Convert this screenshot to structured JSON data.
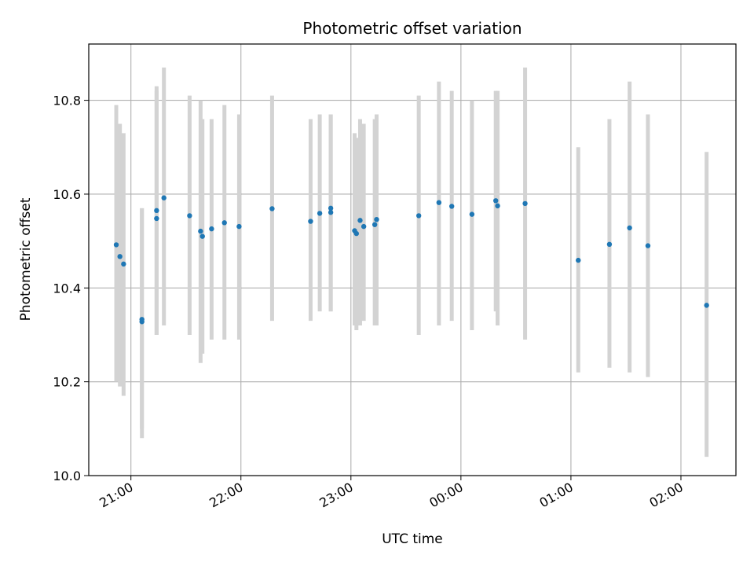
{
  "chart_data": {
    "type": "scatter",
    "title": "Photometric offset variation",
    "xlabel": "UTC time",
    "ylabel": "Photometric offset",
    "grid": true,
    "legend": "none",
    "x_unit": "hours (UTC, continuing past midnight)",
    "xlim": [
      "20:37",
      "02:30"
    ],
    "ylim": [
      10.0,
      10.92
    ],
    "x_ticks": [
      "21:00",
      "22:00",
      "23:00",
      "00:00",
      "01:00",
      "02:00"
    ],
    "y_ticks": [
      "10.0",
      "10.2",
      "10.4",
      "10.6",
      "10.8"
    ],
    "colors": {
      "point": "#1f77b4",
      "errorbar": "#d3d3d3",
      "grid": "#b0b0b0"
    },
    "points": [
      {
        "x": "20:52",
        "y": 10.492,
        "lo": 10.2,
        "hi": 10.79
      },
      {
        "x": "20:54",
        "y": 10.467,
        "lo": 10.19,
        "hi": 10.75
      },
      {
        "x": "20:56",
        "y": 10.451,
        "lo": 10.17,
        "hi": 10.73
      },
      {
        "x": "21:06",
        "y": 10.333,
        "lo": 10.1,
        "hi": 10.57
      },
      {
        "x": "21:06",
        "y": 10.328,
        "lo": 10.08,
        "hi": 10.57
      },
      {
        "x": "21:14",
        "y": 10.548,
        "lo": 10.3,
        "hi": 10.82
      },
      {
        "x": "21:14",
        "y": 10.565,
        "lo": 10.3,
        "hi": 10.83
      },
      {
        "x": "21:18",
        "y": 10.592,
        "lo": 10.32,
        "hi": 10.87
      },
      {
        "x": "21:32",
        "y": 10.554,
        "lo": 10.3,
        "hi": 10.81
      },
      {
        "x": "21:38",
        "y": 10.521,
        "lo": 10.24,
        "hi": 10.8
      },
      {
        "x": "21:39",
        "y": 10.51,
        "lo": 10.26,
        "hi": 10.76
      },
      {
        "x": "21:44",
        "y": 10.526,
        "lo": 10.29,
        "hi": 10.76
      },
      {
        "x": "21:51",
        "y": 10.539,
        "lo": 10.29,
        "hi": 10.79
      },
      {
        "x": "21:59",
        "y": 10.531,
        "lo": 10.29,
        "hi": 10.77
      },
      {
        "x": "22:17",
        "y": 10.569,
        "lo": 10.33,
        "hi": 10.81
      },
      {
        "x": "22:38",
        "y": 10.542,
        "lo": 10.33,
        "hi": 10.76
      },
      {
        "x": "22:43",
        "y": 10.559,
        "lo": 10.35,
        "hi": 10.77
      },
      {
        "x": "22:49",
        "y": 10.57,
        "lo": 10.35,
        "hi": 10.77
      },
      {
        "x": "22:49",
        "y": 10.561,
        "lo": 10.35,
        "hi": 10.77
      },
      {
        "x": "23:02",
        "y": 10.522,
        "lo": 10.32,
        "hi": 10.73
      },
      {
        "x": "23:03",
        "y": 10.516,
        "lo": 10.31,
        "hi": 10.72
      },
      {
        "x": "23:05",
        "y": 10.544,
        "lo": 10.32,
        "hi": 10.76
      },
      {
        "x": "23:07",
        "y": 10.531,
        "lo": 10.33,
        "hi": 10.75
      },
      {
        "x": "23:13",
        "y": 10.535,
        "lo": 10.32,
        "hi": 10.76
      },
      {
        "x": "23:14",
        "y": 10.546,
        "lo": 10.32,
        "hi": 10.77
      },
      {
        "x": "23:37",
        "y": 10.554,
        "lo": 10.3,
        "hi": 10.81
      },
      {
        "x": "23:48",
        "y": 10.582,
        "lo": 10.32,
        "hi": 10.84
      },
      {
        "x": "23:55",
        "y": 10.574,
        "lo": 10.33,
        "hi": 10.82
      },
      {
        "x": "00:06",
        "y": 10.557,
        "lo": 10.31,
        "hi": 10.8
      },
      {
        "x": "00:19",
        "y": 10.586,
        "lo": 10.35,
        "hi": 10.82
      },
      {
        "x": "00:20",
        "y": 10.575,
        "lo": 10.32,
        "hi": 10.82
      },
      {
        "x": "00:35",
        "y": 10.58,
        "lo": 10.29,
        "hi": 10.87
      },
      {
        "x": "01:04",
        "y": 10.459,
        "lo": 10.22,
        "hi": 10.7
      },
      {
        "x": "01:21",
        "y": 10.493,
        "lo": 10.23,
        "hi": 10.76
      },
      {
        "x": "01:32",
        "y": 10.528,
        "lo": 10.22,
        "hi": 10.84
      },
      {
        "x": "01:42",
        "y": 10.49,
        "lo": 10.21,
        "hi": 10.77
      },
      {
        "x": "02:14",
        "y": 10.363,
        "lo": 10.04,
        "hi": 10.69
      }
    ]
  }
}
